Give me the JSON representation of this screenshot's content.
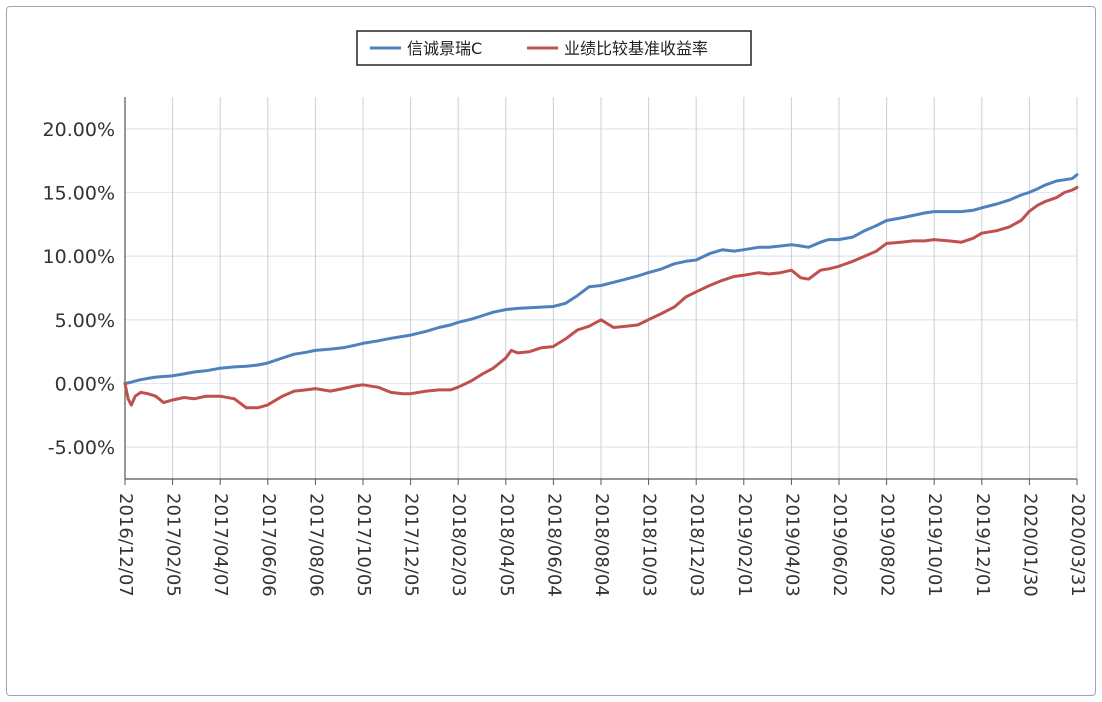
{
  "chart_data": {
    "type": "line",
    "legend_position": "top-center",
    "grid": true,
    "ylim": [
      -7.5,
      22.5
    ],
    "y_ticks": [
      -5,
      0,
      5,
      10,
      15,
      20
    ],
    "y_tick_labels": [
      "-5.00%",
      "0.00%",
      "5.00%",
      "10.00%",
      "15.00%",
      "20.00%"
    ],
    "x_range": [
      "2016-12-07",
      "2020-03-31"
    ],
    "x_tick_labels": [
      "2016/12/07",
      "2017/02/05",
      "2017/04/07",
      "2017/06/06",
      "2017/08/06",
      "2017/10/05",
      "2017/12/05",
      "2018/02/03",
      "2018/04/05",
      "2018/06/04",
      "2018/08/04",
      "2018/10/03",
      "2018/12/03",
      "2019/02/01",
      "2019/04/03",
      "2019/06/02",
      "2019/08/02",
      "2019/10/01",
      "2019/12/01",
      "2020/01/30",
      "2020/03/31"
    ],
    "x": [
      "2016-12-07",
      "2016-12-11",
      "2016-12-15",
      "2016-12-20",
      "2016-12-27",
      "2017-01-05",
      "2017-01-15",
      "2017-01-25",
      "2017-02-05",
      "2017-02-20",
      "2017-03-05",
      "2017-03-20",
      "2017-04-07",
      "2017-04-25",
      "2017-05-10",
      "2017-05-25",
      "2017-06-06",
      "2017-06-25",
      "2017-07-10",
      "2017-07-25",
      "2017-08-06",
      "2017-08-25",
      "2017-09-10",
      "2017-09-25",
      "2017-10-05",
      "2017-10-25",
      "2017-11-10",
      "2017-11-25",
      "2017-12-05",
      "2017-12-25",
      "2018-01-10",
      "2018-01-25",
      "2018-02-03",
      "2018-02-20",
      "2018-03-05",
      "2018-03-20",
      "2018-04-05",
      "2018-04-12",
      "2018-04-20",
      "2018-05-05",
      "2018-05-20",
      "2018-06-04",
      "2018-06-20",
      "2018-07-05",
      "2018-07-20",
      "2018-08-04",
      "2018-08-20",
      "2018-09-05",
      "2018-09-20",
      "2018-10-03",
      "2018-10-20",
      "2018-11-05",
      "2018-11-20",
      "2018-12-03",
      "2018-12-20",
      "2019-01-05",
      "2019-01-20",
      "2019-02-01",
      "2019-02-20",
      "2019-03-05",
      "2019-03-20",
      "2019-04-03",
      "2019-04-15",
      "2019-04-25",
      "2019-05-10",
      "2019-05-20",
      "2019-06-02",
      "2019-06-20",
      "2019-07-05",
      "2019-07-20",
      "2019-08-02",
      "2019-08-20",
      "2019-09-05",
      "2019-09-20",
      "2019-10-01",
      "2019-10-20",
      "2019-11-05",
      "2019-11-20",
      "2019-12-01",
      "2019-12-20",
      "2020-01-05",
      "2020-01-20",
      "2020-01-30",
      "2020-02-10",
      "2020-02-20",
      "2020-03-05",
      "2020-03-15",
      "2020-03-25",
      "2020-03-31"
    ],
    "series": [
      {
        "name": "信诚景瑞C",
        "color": "#4f81bd",
        "values": [
          0.0,
          0.05,
          0.1,
          0.2,
          0.3,
          0.4,
          0.5,
          0.55,
          0.6,
          0.75,
          0.9,
          1.0,
          1.2,
          1.3,
          1.35,
          1.45,
          1.6,
          2.0,
          2.3,
          2.45,
          2.6,
          2.7,
          2.8,
          3.0,
          3.15,
          3.35,
          3.55,
          3.7,
          3.8,
          4.1,
          4.4,
          4.6,
          4.8,
          5.05,
          5.3,
          5.6,
          5.8,
          5.85,
          5.9,
          5.95,
          6.0,
          6.05,
          6.3,
          6.9,
          7.6,
          7.7,
          7.95,
          8.2,
          8.45,
          8.7,
          9.0,
          9.4,
          9.6,
          9.7,
          10.2,
          10.5,
          10.4,
          10.5,
          10.7,
          10.7,
          10.8,
          10.9,
          10.8,
          10.7,
          11.1,
          11.3,
          11.3,
          11.5,
          12.0,
          12.4,
          12.8,
          13.0,
          13.2,
          13.4,
          13.5,
          13.5,
          13.5,
          13.6,
          13.8,
          14.1,
          14.4,
          14.8,
          15.0,
          15.3,
          15.6,
          15.9,
          16.0,
          16.1,
          16.4
        ]
      },
      {
        "name": "业绩比较基准收益率",
        "color": "#c0504d",
        "values": [
          0.0,
          -1.2,
          -1.7,
          -1.0,
          -0.7,
          -0.8,
          -1.0,
          -1.5,
          -1.3,
          -1.1,
          -1.2,
          -1.0,
          -1.0,
          -1.2,
          -1.9,
          -1.9,
          -1.7,
          -1.0,
          -0.6,
          -0.5,
          -0.4,
          -0.6,
          -0.4,
          -0.2,
          -0.1,
          -0.3,
          -0.7,
          -0.8,
          -0.8,
          -0.6,
          -0.5,
          -0.5,
          -0.3,
          0.2,
          0.7,
          1.2,
          2.0,
          2.6,
          2.4,
          2.5,
          2.8,
          2.9,
          3.5,
          4.2,
          4.5,
          5.0,
          4.4,
          4.5,
          4.6,
          5.0,
          5.5,
          6.0,
          6.8,
          7.2,
          7.7,
          8.1,
          8.4,
          8.5,
          8.7,
          8.6,
          8.7,
          8.9,
          8.3,
          8.2,
          8.9,
          9.0,
          9.2,
          9.6,
          10.0,
          10.4,
          11.0,
          11.1,
          11.2,
          11.2,
          11.3,
          11.2,
          11.1,
          11.4,
          11.8,
          12.0,
          12.3,
          12.8,
          13.5,
          14.0,
          14.3,
          14.6,
          15.0,
          15.2,
          15.4
        ]
      }
    ]
  }
}
